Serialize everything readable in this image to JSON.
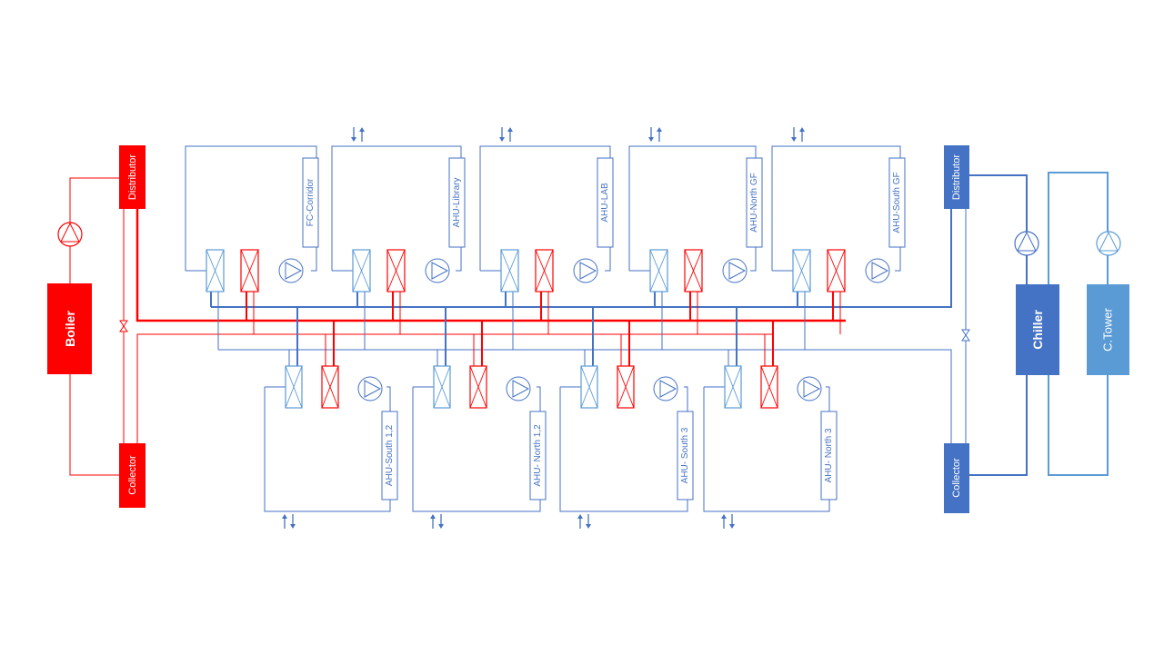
{
  "equipment": {
    "boiler": "Boiler",
    "chiller": "Chiller",
    "tower": "C.Tower",
    "hot_distributor": "Distributor",
    "hot_collector": "Collector",
    "cold_distributor": "Distributor",
    "cold_collector": "Collector"
  },
  "top_units": [
    "FC-Corridor",
    "AHU-Library",
    "AHU-LAB",
    "AHU-North GF",
    "AHU-South  GF"
  ],
  "bottom_units": [
    "AHU-South 1,2",
    "AHU- North 1,2",
    "AHU- South 3",
    "AHU- North 3"
  ],
  "colors": {
    "hot": "#FF0000",
    "cold": "#4472C4",
    "tower": "#5B9BD5"
  }
}
